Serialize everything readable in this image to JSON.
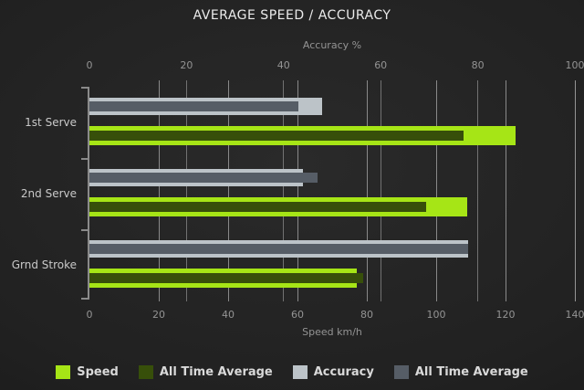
{
  "title": "AVERAGE SPEED / ACCURACY",
  "colors": {
    "speed": "#a6e516",
    "speed_all_time_avg": "#374f0a",
    "accuracy": "#bcc3c8",
    "accuracy_all_time_avg": "#565d66",
    "gridline": "#9b9b9b",
    "axis": "#8a8a8a",
    "muted_text": "#949494",
    "title_text": "#ebebeb",
    "category_text": "#c9c9c9",
    "legend_text": "#d9d9d9"
  },
  "chart_data": {
    "type": "bar",
    "orientation": "horizontal",
    "title": "AVERAGE SPEED / ACCURACY",
    "categories": [
      "1st Serve",
      "2nd Serve",
      "Grnd Stroke"
    ],
    "series": [
      {
        "name": "Speed",
        "axis": "bottom",
        "values": [
          123,
          109,
          77
        ],
        "color": "#a6e516",
        "role": "outer"
      },
      {
        "name": "All Time Average",
        "axis": "bottom",
        "values": [
          108,
          97,
          79
        ],
        "color": "#374f0a",
        "role": "inner"
      },
      {
        "name": "Accuracy",
        "axis": "top",
        "values": [
          48,
          44,
          78
        ],
        "color": "#bcc3c8",
        "role": "outer"
      },
      {
        "name": "All Time Average",
        "axis": "top",
        "values": [
          43,
          47,
          78
        ],
        "color": "#565d66",
        "role": "inner"
      }
    ],
    "axes": {
      "top": {
        "label": "Accuracy %",
        "min": 0,
        "max": 100,
        "ticks": [
          0,
          20,
          40,
          60,
          80,
          100
        ]
      },
      "bottom": {
        "label": "Speed km/h",
        "min": 0,
        "max": 140,
        "ticks": [
          0,
          20,
          40,
          60,
          80,
          100,
          120,
          140
        ]
      }
    },
    "grid": true,
    "legend_position": "bottom",
    "legend": [
      "Speed",
      "All Time Average",
      "Accuracy",
      "All Time Average"
    ]
  }
}
